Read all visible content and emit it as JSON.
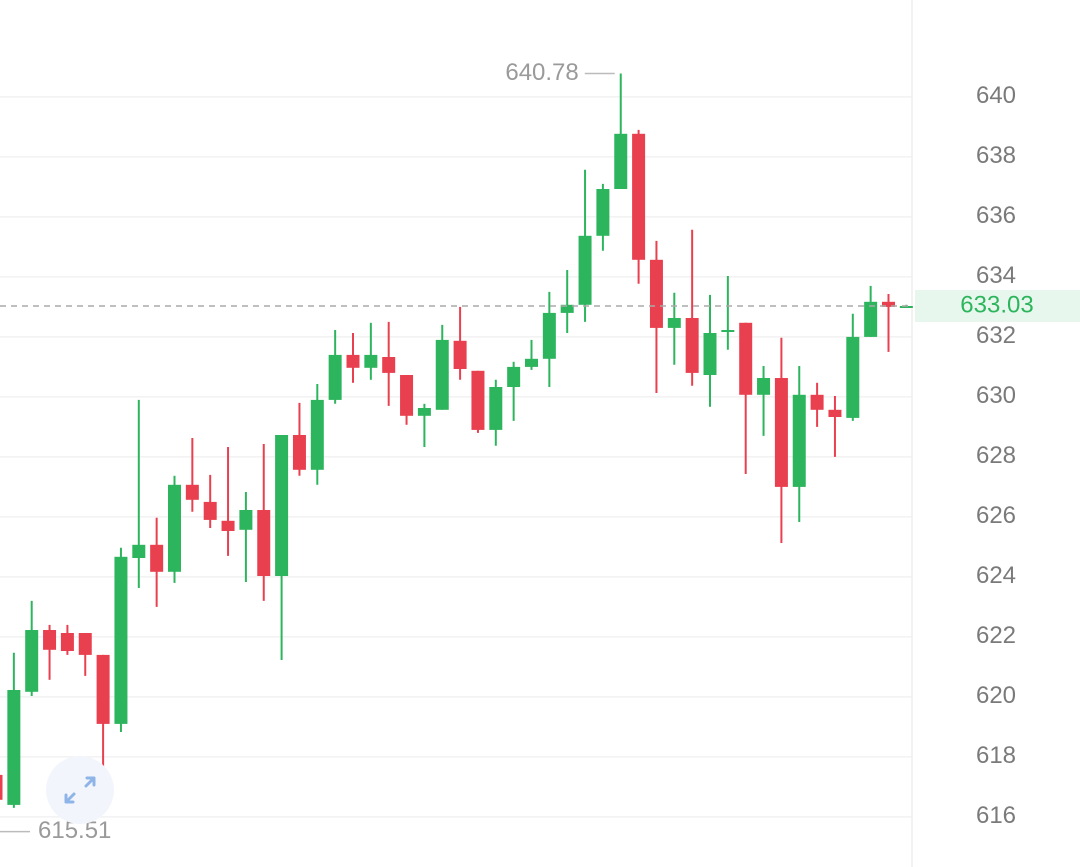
{
  "chart_data": {
    "type": "candlestick",
    "open": [
      617.4,
      616.4,
      620.17,
      622.23,
      622.13,
      622.13,
      621.4,
      619.1,
      624.63,
      625.07,
      624.17,
      627.07,
      626.5,
      625.87,
      625.57,
      626.23,
      624.03,
      628.73,
      627.57,
      629.9,
      631.4,
      630.97,
      631.33,
      630.73,
      629.37,
      629.57,
      631.87,
      630.87,
      628.9,
      630.33,
      631.0,
      631.27,
      632.8,
      633.07,
      635.37,
      636.93,
      638.77,
      634.57,
      632.3,
      632.63,
      630.73,
      632.17,
      632.47,
      630.07,
      630.63,
      627.0,
      630.07,
      629.57,
      629.3,
      632.0,
      633.17,
      633.0
    ],
    "high": [
      617.5,
      621.47,
      623.2,
      622.4,
      622.4,
      622.13,
      621.4,
      624.97,
      629.9,
      625.97,
      627.37,
      628.63,
      627.4,
      628.33,
      626.83,
      628.43,
      628.73,
      629.8,
      630.43,
      632.23,
      632.13,
      632.47,
      632.5,
      630.73,
      629.77,
      632.4,
      633.0,
      630.87,
      630.57,
      631.17,
      631.9,
      633.5,
      634.23,
      637.57,
      637.1,
      640.78,
      638.9,
      635.2,
      633.47,
      635.57,
      633.4,
      634.03,
      632.47,
      631.03,
      631.97,
      631.03,
      630.47,
      630.03,
      632.77,
      633.7,
      633.43,
      633.07
    ],
    "low": [
      615.51,
      616.3,
      620.03,
      620.57,
      621.4,
      620.7,
      617.33,
      618.83,
      623.63,
      623.0,
      623.8,
      626.17,
      625.63,
      624.7,
      623.83,
      623.2,
      621.23,
      627.37,
      627.07,
      629.77,
      630.47,
      630.57,
      629.7,
      629.07,
      628.33,
      629.57,
      630.57,
      628.8,
      628.37,
      629.2,
      630.9,
      630.33,
      632.13,
      632.5,
      634.87,
      636.93,
      633.77,
      630.13,
      631.07,
      630.37,
      629.67,
      631.57,
      627.43,
      628.7,
      625.13,
      625.83,
      629.0,
      628.0,
      629.2,
      632.0,
      631.5,
      632.97
    ],
    "close": [
      616.57,
      620.23,
      622.23,
      621.57,
      621.53,
      621.4,
      619.1,
      624.67,
      625.07,
      624.17,
      627.07,
      626.57,
      625.9,
      625.53,
      626.23,
      624.03,
      628.73,
      627.57,
      629.9,
      631.4,
      630.97,
      631.4,
      630.8,
      629.37,
      629.63,
      631.9,
      630.93,
      628.9,
      630.33,
      631.0,
      631.27,
      632.8,
      633.07,
      635.37,
      636.93,
      638.77,
      634.57,
      632.3,
      632.63,
      630.8,
      632.13,
      632.23,
      630.07,
      630.63,
      627.0,
      630.07,
      629.57,
      629.33,
      632.0,
      633.17,
      633.0,
      633.03
    ],
    "up_color": "#2db55d",
    "down_color": "#e8404f",
    "ylim": [
      614.33,
      643.23
    ],
    "yticks": [
      616,
      618,
      620,
      622,
      624,
      626,
      628,
      630,
      632,
      634,
      636,
      638,
      640
    ],
    "grid": true
  }
}
